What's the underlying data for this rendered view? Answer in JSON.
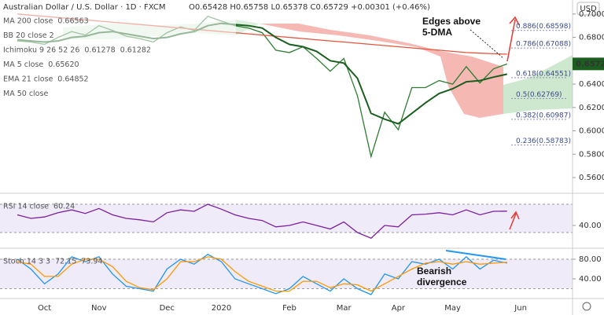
{
  "chart_data": [
    {
      "type": "line",
      "title": "Australian Dollar / U.S. Dollar · 1D · FXCM",
      "subtitle": "O0.65428 H0.65758 L0.65378 C0.65729 +0.00301 (+0.46%)",
      "currency": "USD",
      "legend": [
        {
          "label": "MA 200 close",
          "value": "0.66563",
          "color": "#e5533b"
        },
        {
          "label": "BB 20 close 2"
        },
        {
          "label": "Ichimoku 9 26 52 26",
          "value": "0.61278",
          "value2": "0.61282",
          "color": "#2e7d32",
          "color2": "#e5533b"
        },
        {
          "label": "MA 5 close",
          "value": "0.65620",
          "color": "#2e7d32"
        },
        {
          "label": "EMA 21 close",
          "value": "0.64852",
          "color": "#1b5e20"
        },
        {
          "label": "MA 50 close"
        }
      ],
      "categories": [
        null,
        null,
        "Oct",
        null,
        null,
        null,
        "Nov",
        null,
        null,
        null,
        null,
        "Dec",
        null,
        null,
        null,
        "2020",
        null,
        null,
        null,
        null,
        "Feb",
        null,
        null,
        null,
        "Mar",
        null,
        null,
        null,
        "Apr",
        null,
        null,
        null,
        "May",
        null,
        null,
        null,
        null,
        "Jun"
      ],
      "series": [
        {
          "color": "#2e7d32",
          "values": [
            0.677,
            0.676,
            0.674,
            0.68,
            0.685,
            0.682,
            0.69,
            0.686,
            0.681,
            0.679,
            0.676,
            0.684,
            0.689,
            0.686,
            0.698,
            0.694,
            0.69,
            0.688,
            0.684,
            0.669,
            0.667,
            0.672,
            0.662,
            0.651,
            0.662,
            0.63,
            0.578,
            0.616,
            0.601,
            0.637,
            0.637,
            0.643,
            0.64,
            0.655,
            0.641,
            0.653,
            0.65729,
            null
          ]
        },
        {
          "name": "MA 200 close",
          "color": "#e5533b",
          "values": [
            0.7,
            0.699,
            0.698,
            0.697,
            0.696,
            0.695,
            0.694,
            0.693,
            0.692,
            0.691,
            0.69,
            0.689,
            0.688,
            0.687,
            0.686,
            0.685,
            0.684,
            0.683,
            0.682,
            0.681,
            0.68,
            0.679,
            0.678,
            0.677,
            0.676,
            0.675,
            0.674,
            0.673,
            0.672,
            0.671,
            0.67,
            0.669,
            0.668,
            0.667,
            0.6665,
            0.666,
            0.66563,
            null
          ]
        },
        {
          "name": "EMA 21 close",
          "color": "#1b5e20",
          "values": [
            0.678,
            0.677,
            0.676,
            0.677,
            0.68,
            0.681,
            0.684,
            0.685,
            0.683,
            0.681,
            0.679,
            0.68,
            0.683,
            0.685,
            0.69,
            0.692,
            0.691,
            0.69,
            0.688,
            0.68,
            0.674,
            0.672,
            0.668,
            0.66,
            0.658,
            0.645,
            0.615,
            0.61,
            0.606,
            0.615,
            0.624,
            0.632,
            0.636,
            0.642,
            0.643,
            0.646,
            0.64852,
            null
          ]
        }
      ],
      "last_price": {
        "value": 0.65729,
        "label": "0.65729"
      },
      "fib_levels": [
        {
          "value": 0.68598,
          "label": "0.886(0.68598)"
        },
        {
          "value": 0.67088,
          "label": "0.786(0.67088)"
        },
        {
          "value": 0.64551,
          "label": "0.618(0.64551)"
        },
        {
          "value": 0.62769,
          "label": "0.5(0.62769)"
        },
        {
          "value": 0.60987,
          "label": "0.382(0.60987)"
        },
        {
          "value": 0.58783,
          "label": "0.236(0.58783)"
        }
      ],
      "annotations": [
        "Edges above",
        "5-DMA"
      ],
      "ylim": [
        0.5486,
        0.712
      ],
      "yticks": [
        {
          "value": 0.56,
          "label": "0.56000"
        },
        {
          "value": 0.58,
          "label": "0.58000"
        },
        {
          "value": 0.6,
          "label": "0.60000"
        },
        {
          "value": 0.62,
          "label": "0.62000"
        },
        {
          "value": 0.64,
          "label": "0.64000"
        },
        {
          "value": 0.68,
          "label": "0.68000"
        },
        {
          "value": 0.7,
          "label": "0.70000"
        }
      ]
    },
    {
      "type": "line",
      "title": "RSI 14 close",
      "value_label": "60.24",
      "series": [
        {
          "color": "#7b1fa2",
          "values": [
            55,
            50,
            52,
            58,
            62,
            57,
            64,
            55,
            50,
            48,
            45,
            58,
            62,
            60,
            70,
            63,
            55,
            50,
            47,
            38,
            40,
            45,
            40,
            35,
            45,
            30,
            22,
            40,
            38,
            55,
            56,
            58,
            55,
            62,
            55,
            60,
            60.24,
            null
          ]
        }
      ],
      "bands": [
        30,
        70
      ],
      "ylim": [
        10,
        83.3
      ],
      "yticks": [
        {
          "value": 40,
          "label": "40.00"
        }
      ]
    },
    {
      "type": "line",
      "title": "Stoch 14 3 3",
      "value_labels": [
        "72.15",
        "73.94"
      ],
      "series": [
        {
          "color": "#2196f3",
          "values": [
            80,
            60,
            30,
            50,
            85,
            75,
            85,
            50,
            25,
            20,
            15,
            60,
            80,
            70,
            90,
            75,
            40,
            30,
            20,
            10,
            20,
            45,
            30,
            15,
            40,
            20,
            8,
            50,
            40,
            75,
            70,
            80,
            60,
            85,
            60,
            78,
            72.15,
            null
          ]
        },
        {
          "color": "#ff9800",
          "values": [
            75,
            70,
            45,
            45,
            70,
            80,
            80,
            65,
            35,
            22,
            18,
            40,
            75,
            75,
            85,
            80,
            55,
            35,
            25,
            15,
            15,
            35,
            35,
            22,
            30,
            28,
            15,
            30,
            45,
            60,
            72,
            75,
            70,
            75,
            70,
            72,
            73.94,
            null
          ]
        }
      ],
      "annotations": [
        "Bearish",
        "divergence"
      ],
      "bands": [
        20,
        80
      ],
      "ylim": [
        0,
        99.2
      ],
      "yticks": [
        {
          "value": 80,
          "label": "80.00"
        },
        {
          "value": 40,
          "label": "40.00"
        }
      ]
    }
  ]
}
